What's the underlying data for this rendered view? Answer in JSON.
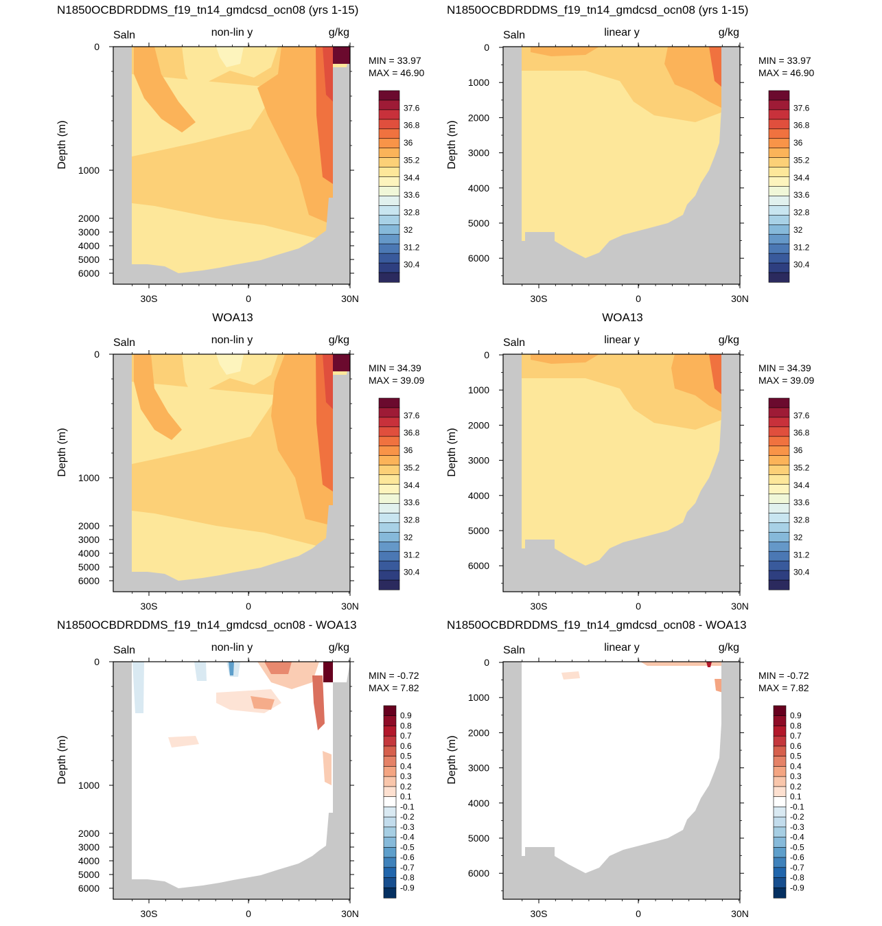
{
  "chart_data": [
    {
      "type": "heatmap",
      "title": "N1850OCBDRDDMS_f19_tn14_gmdcsd_ocn08 (yrs 1-15)",
      "left_label": "Saln",
      "center_label": "non-lin y",
      "right_label": "g/kg",
      "ylabel": "Depth (m)",
      "yscale": "non-linear",
      "x_ticks": [
        "30S",
        "0",
        "30N"
      ],
      "y_ticks": [
        "0",
        "1000",
        "2000",
        "3000",
        "4000",
        "5000",
        "6000"
      ],
      "min_text": "MIN =  33.97",
      "max_text": "MAX =  46.90",
      "colorbar_labels": [
        "37.6",
        "36.8",
        "36",
        "35.2",
        "34.4",
        "33.6",
        "32.8",
        "32",
        "31.2",
        "30.4"
      ],
      "colorbar_colors": [
        "#6b0a2e",
        "#9e1b36",
        "#c8313b",
        "#e04f3d",
        "#f0723f",
        "#f89448",
        "#fbb359",
        "#fcd077",
        "#fde79a",
        "#fdf4bd",
        "#f0f7d8",
        "#e1f1ee",
        "#c8e5f0",
        "#a8d1e6",
        "#86b9da",
        "#6598c8",
        "#4b78b4",
        "#395a9c",
        "#2e3f80",
        "#2b2a5e"
      ]
    },
    {
      "type": "heatmap",
      "title": "N1850OCBDRDDMS_f19_tn14_gmdcsd_ocn08 (yrs 1-15)",
      "left_label": "Saln",
      "center_label": "linear y",
      "right_label": "g/kg",
      "ylabel": "Depth (m)",
      "yscale": "linear",
      "x_ticks": [
        "30S",
        "0",
        "30N"
      ],
      "y_ticks": [
        "0",
        "1000",
        "2000",
        "3000",
        "4000",
        "5000",
        "6000"
      ],
      "min_text": "MIN =  33.97",
      "max_text": "MAX =  46.90",
      "colorbar_labels": [
        "37.6",
        "36.8",
        "36",
        "35.2",
        "34.4",
        "33.6",
        "32.8",
        "32",
        "31.2",
        "30.4"
      ],
      "colorbar_colors": [
        "#6b0a2e",
        "#9e1b36",
        "#c8313b",
        "#e04f3d",
        "#f0723f",
        "#f89448",
        "#fbb359",
        "#fcd077",
        "#fde79a",
        "#fdf4bd",
        "#f0f7d8",
        "#e1f1ee",
        "#c8e5f0",
        "#a8d1e6",
        "#86b9da",
        "#6598c8",
        "#4b78b4",
        "#395a9c",
        "#2e3f80",
        "#2b2a5e"
      ]
    },
    {
      "type": "heatmap",
      "title": "WOA13",
      "left_label": "Saln",
      "center_label": "non-lin y",
      "right_label": "g/kg",
      "ylabel": "Depth (m)",
      "yscale": "non-linear",
      "x_ticks": [
        "30S",
        "0",
        "30N"
      ],
      "y_ticks": [
        "0",
        "1000",
        "2000",
        "3000",
        "4000",
        "5000",
        "6000"
      ],
      "min_text": "MIN =  34.39",
      "max_text": "MAX =  39.09",
      "colorbar_labels": [
        "37.6",
        "36.8",
        "36",
        "35.2",
        "34.4",
        "33.6",
        "32.8",
        "32",
        "31.2",
        "30.4"
      ],
      "colorbar_colors": [
        "#6b0a2e",
        "#9e1b36",
        "#c8313b",
        "#e04f3d",
        "#f0723f",
        "#f89448",
        "#fbb359",
        "#fcd077",
        "#fde79a",
        "#fdf4bd",
        "#f0f7d8",
        "#e1f1ee",
        "#c8e5f0",
        "#a8d1e6",
        "#86b9da",
        "#6598c8",
        "#4b78b4",
        "#395a9c",
        "#2e3f80",
        "#2b2a5e"
      ]
    },
    {
      "type": "heatmap",
      "title": "WOA13",
      "left_label": "Saln",
      "center_label": "linear y",
      "right_label": "g/kg",
      "ylabel": "Depth (m)",
      "yscale": "linear",
      "x_ticks": [
        "30S",
        "0",
        "30N"
      ],
      "y_ticks": [
        "0",
        "1000",
        "2000",
        "3000",
        "4000",
        "5000",
        "6000"
      ],
      "min_text": "MIN =  34.39",
      "max_text": "MAX =  39.09",
      "colorbar_labels": [
        "37.6",
        "36.8",
        "36",
        "35.2",
        "34.4",
        "33.6",
        "32.8",
        "32",
        "31.2",
        "30.4"
      ],
      "colorbar_colors": [
        "#6b0a2e",
        "#9e1b36",
        "#c8313b",
        "#e04f3d",
        "#f0723f",
        "#f89448",
        "#fbb359",
        "#fcd077",
        "#fde79a",
        "#fdf4bd",
        "#f0f7d8",
        "#e1f1ee",
        "#c8e5f0",
        "#a8d1e6",
        "#86b9da",
        "#6598c8",
        "#4b78b4",
        "#395a9c",
        "#2e3f80",
        "#2b2a5e"
      ]
    },
    {
      "type": "heatmap",
      "title": "N1850OCBDRDDMS_f19_tn14_gmdcsd_ocn08 - WOA13",
      "left_label": "Saln",
      "center_label": "non-lin y",
      "right_label": "g/kg",
      "ylabel": "Depth (m)",
      "yscale": "non-linear",
      "x_ticks": [
        "30S",
        "0",
        "30N"
      ],
      "y_ticks": [
        "0",
        "1000",
        "2000",
        "3000",
        "4000",
        "5000",
        "6000"
      ],
      "min_text": "MIN =  -0.72",
      "max_text": "MAX =   7.82",
      "colorbar_labels": [
        "0.9",
        "0.8",
        "0.7",
        "0.6",
        "0.5",
        "0.4",
        "0.3",
        "0.2",
        "0.1",
        "-0.1",
        "-0.2",
        "-0.3",
        "-0.4",
        "-0.5",
        "-0.6",
        "-0.7",
        "-0.8",
        "-0.9"
      ],
      "colorbar_colors": [
        "#67001f",
        "#8e0c27",
        "#b2182b",
        "#c4383d",
        "#d6604d",
        "#e58267",
        "#f4a582",
        "#f9c6ab",
        "#fde0d0",
        "#ffffff",
        "#d9e9f2",
        "#c2dcec",
        "#a6cee3",
        "#86bada",
        "#5e9fcb",
        "#3f82bb",
        "#2166ac",
        "#174f8f",
        "#053061"
      ]
    },
    {
      "type": "heatmap",
      "title": "N1850OCBDRDDMS_f19_tn14_gmdcsd_ocn08 - WOA13",
      "left_label": "Saln",
      "center_label": "linear y",
      "right_label": "g/kg",
      "ylabel": "Depth (m)",
      "yscale": "linear",
      "x_ticks": [
        "30S",
        "0",
        "30N"
      ],
      "y_ticks": [
        "0",
        "1000",
        "2000",
        "3000",
        "4000",
        "5000",
        "6000"
      ],
      "min_text": "MIN =  -0.72",
      "max_text": "MAX =   7.82",
      "colorbar_labels": [
        "0.9",
        "0.8",
        "0.7",
        "0.6",
        "0.5",
        "0.4",
        "0.3",
        "0.2",
        "0.1",
        "-0.1",
        "-0.2",
        "-0.3",
        "-0.4",
        "-0.5",
        "-0.6",
        "-0.7",
        "-0.8",
        "-0.9"
      ],
      "colorbar_colors": [
        "#67001f",
        "#8e0c27",
        "#b2182b",
        "#c4383d",
        "#d6604d",
        "#e58267",
        "#f4a582",
        "#f9c6ab",
        "#fde0d0",
        "#ffffff",
        "#d9e9f2",
        "#c2dcec",
        "#a6cee3",
        "#86bada",
        "#5e9fcb",
        "#3f82bb",
        "#2166ac",
        "#174f8f",
        "#053061"
      ]
    }
  ]
}
